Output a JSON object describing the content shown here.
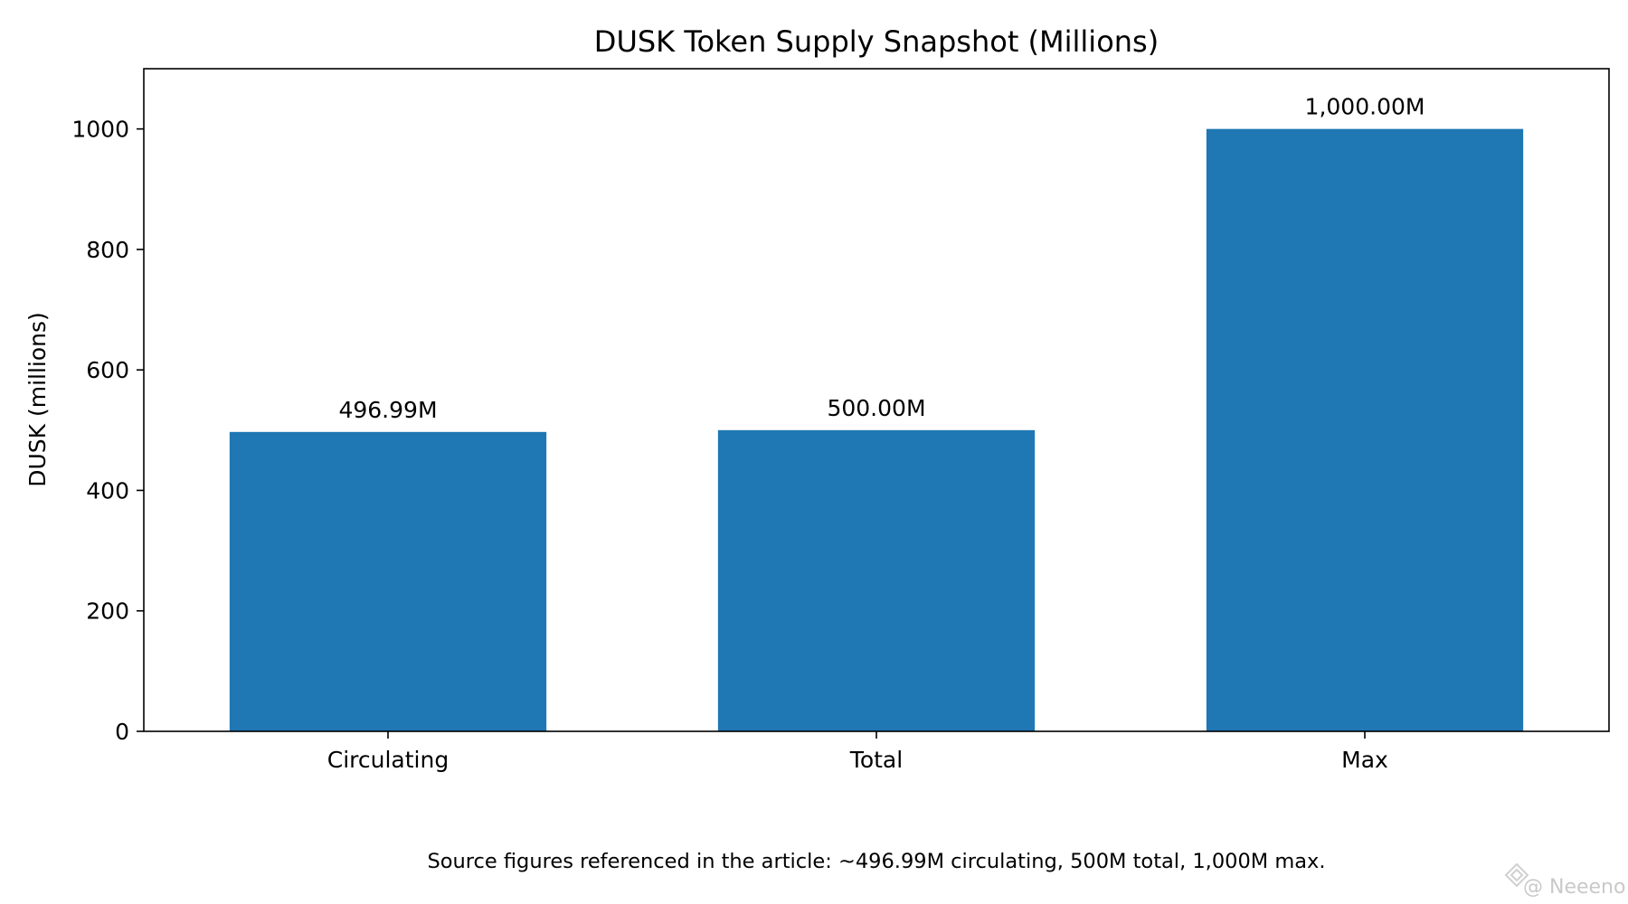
{
  "chart_data": {
    "type": "bar",
    "title": "DUSK Token Supply Snapshot (Millions)",
    "categories": [
      "Circulating",
      "Total",
      "Max"
    ],
    "values": [
      496.99,
      500.0,
      1000.0
    ],
    "data_labels": [
      "496.99M",
      "500.00M",
      "1,000.00M"
    ],
    "xlabel": "",
    "ylabel": "DUSK (millions)",
    "ylim": [
      0,
      1100
    ],
    "yticks": [
      0,
      200,
      400,
      600,
      800,
      1000
    ],
    "grid": false,
    "bar_color": "#1f77b4"
  },
  "footnote": "Source figures referenced in the article: ~496.99M circulating, 500M total, 1,000M max.",
  "watermark": "@ Neeeno"
}
